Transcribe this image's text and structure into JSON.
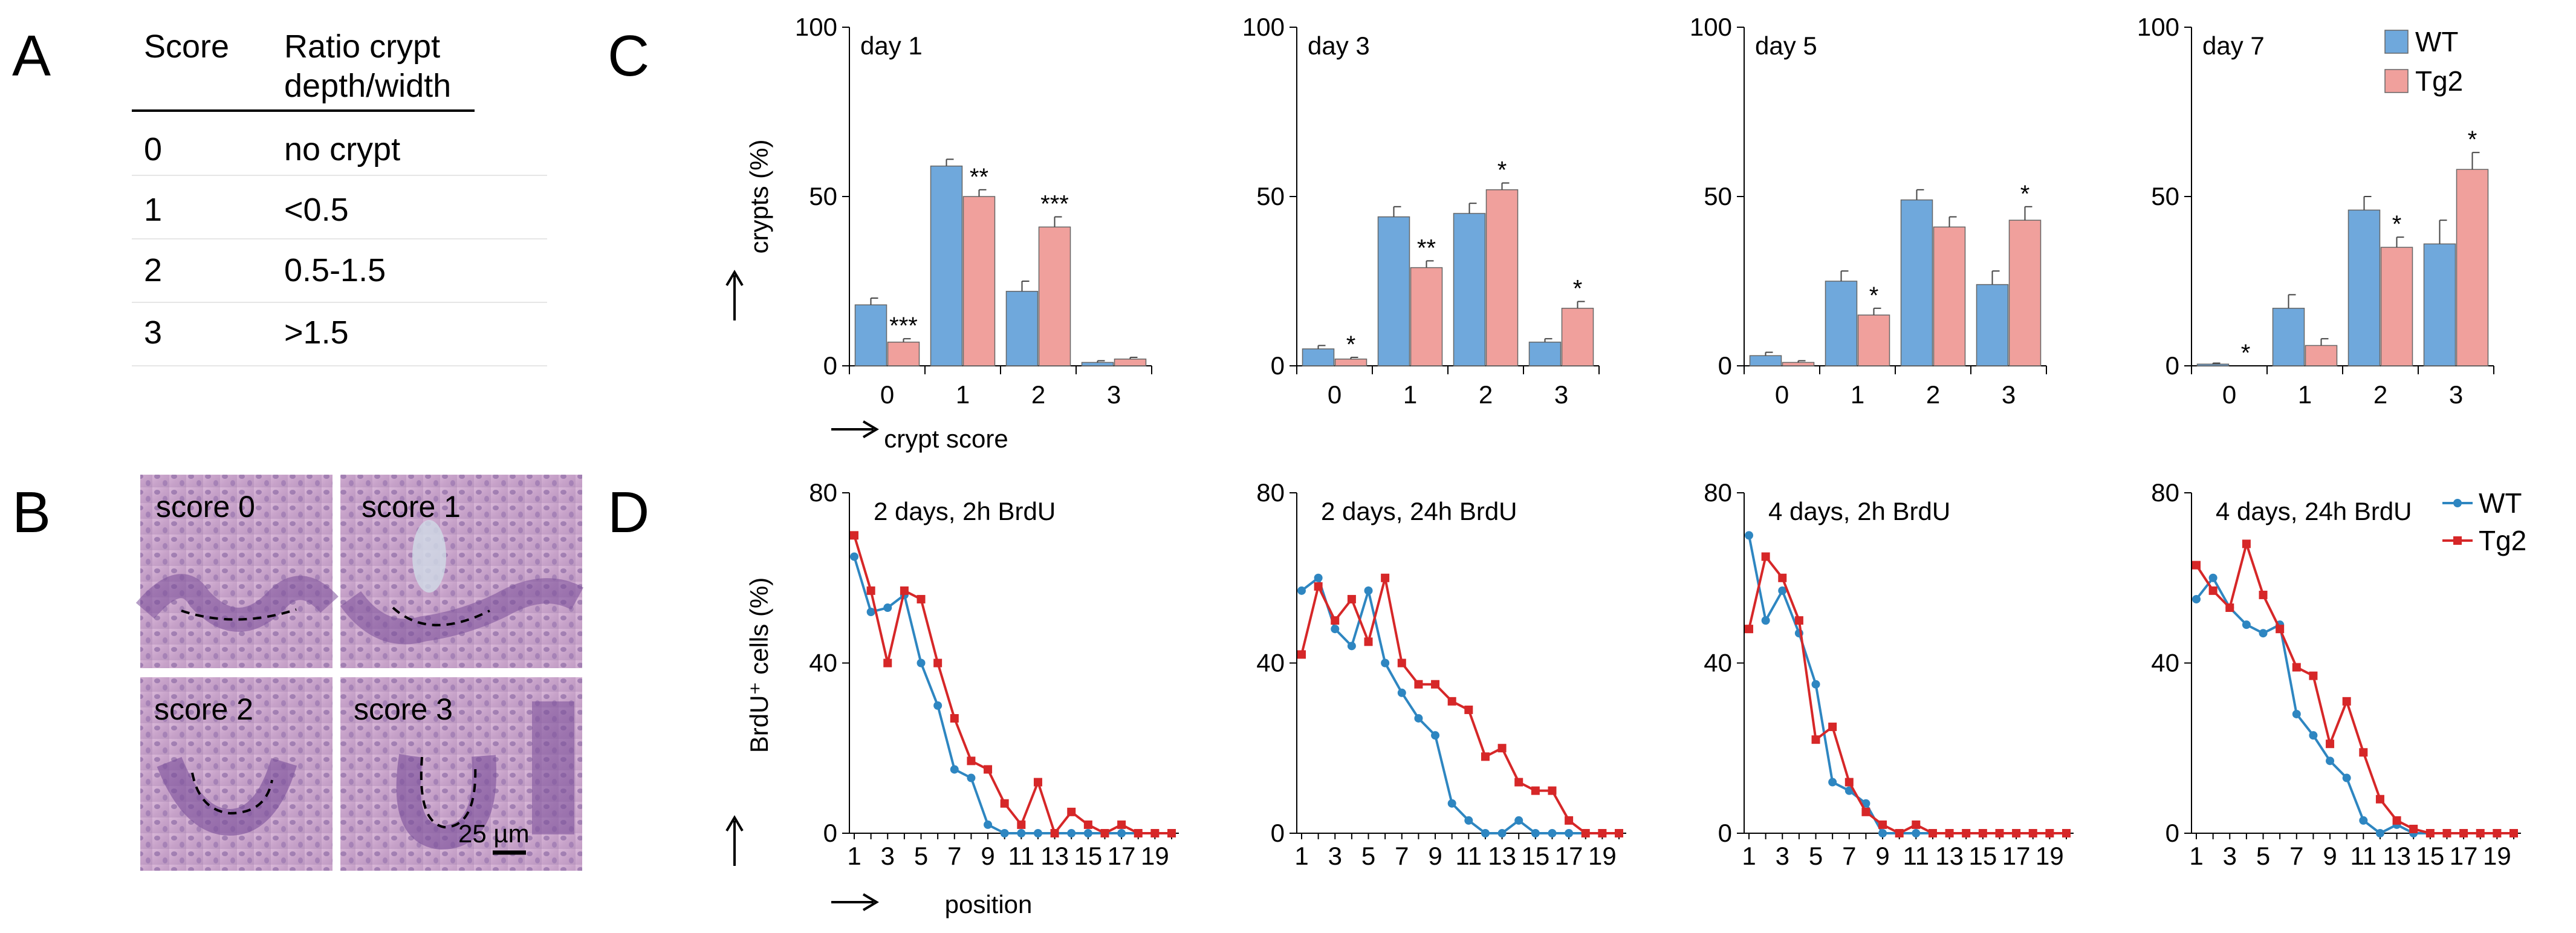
{
  "panels": {
    "A": "A",
    "B": "B",
    "C": "C",
    "D": "D"
  },
  "table_A": {
    "header_score": "Score",
    "header_ratio_line1": "Ratio crypt",
    "header_ratio_line2": "depth/width",
    "rows": [
      {
        "score": "0",
        "ratio": "no crypt"
      },
      {
        "score": "1",
        "ratio": "<0.5"
      },
      {
        "score": "2",
        "ratio": "0.5-1.5"
      },
      {
        "score": "3",
        "ratio": ">1.5"
      }
    ]
  },
  "histology_B": {
    "labels": [
      "score 0",
      "score 1",
      "score 2",
      "score 3"
    ],
    "scale_bar": "25 µm"
  },
  "colors": {
    "wt_bar": "#6fa8dc",
    "tg2_bar": "#f0a09c",
    "wt_line": "#2e86c1",
    "tg2_line": "#d62728",
    "axis": "#000000"
  },
  "chart_data": [
    {
      "type": "bar",
      "panel": "C",
      "title": "day 1",
      "categories": [
        "0",
        "1",
        "2",
        "3"
      ],
      "series": [
        {
          "name": "WT",
          "values": [
            18,
            59,
            22,
            1
          ],
          "errors": [
            2,
            2,
            3,
            0.5
          ]
        },
        {
          "name": "Tg2",
          "values": [
            7,
            50,
            41,
            2
          ],
          "errors": [
            1,
            2,
            3,
            0.5
          ]
        }
      ],
      "annotations": [
        {
          "category": "0",
          "series": "Tg2",
          "text": "***"
        },
        {
          "category": "1",
          "series": "Tg2",
          "text": "**"
        },
        {
          "category": "2",
          "series": "Tg2",
          "text": "***"
        }
      ],
      "ylabel": "crypts (%)",
      "xlabel": "crypt score",
      "ylim": [
        0,
        100
      ],
      "yticks": [
        "0",
        "50",
        "100"
      ]
    },
    {
      "type": "bar",
      "panel": "C",
      "title": "day 3",
      "categories": [
        "0",
        "1",
        "2",
        "3"
      ],
      "series": [
        {
          "name": "WT",
          "values": [
            5,
            44,
            45,
            7
          ],
          "errors": [
            1,
            3,
            3,
            1
          ]
        },
        {
          "name": "Tg2",
          "values": [
            2,
            29,
            52,
            17
          ],
          "errors": [
            0.5,
            2,
            2,
            2
          ]
        }
      ],
      "annotations": [
        {
          "category": "0",
          "series": "Tg2",
          "text": "*"
        },
        {
          "category": "1",
          "series": "Tg2",
          "text": "**"
        },
        {
          "category": "2",
          "series": "Tg2",
          "text": "*"
        },
        {
          "category": "3",
          "series": "Tg2",
          "text": "*"
        }
      ],
      "ylim": [
        0,
        100
      ],
      "yticks": [
        "0",
        "50",
        "100"
      ]
    },
    {
      "type": "bar",
      "panel": "C",
      "title": "day 5",
      "categories": [
        "0",
        "1",
        "2",
        "3"
      ],
      "series": [
        {
          "name": "WT",
          "values": [
            3,
            25,
            49,
            24
          ],
          "errors": [
            1,
            3,
            3,
            4
          ]
        },
        {
          "name": "Tg2",
          "values": [
            1,
            15,
            41,
            43
          ],
          "errors": [
            0.5,
            2,
            3,
            4
          ]
        }
      ],
      "annotations": [
        {
          "category": "1",
          "series": "Tg2",
          "text": "*"
        },
        {
          "category": "3",
          "series": "Tg2",
          "text": "*"
        }
      ],
      "ylim": [
        0,
        100
      ],
      "yticks": [
        "0",
        "50",
        "100"
      ]
    },
    {
      "type": "bar",
      "panel": "C",
      "title": "day 7",
      "categories": [
        "0",
        "1",
        "2",
        "3"
      ],
      "series": [
        {
          "name": "WT",
          "values": [
            0.5,
            17,
            46,
            36
          ],
          "errors": [
            0.3,
            4,
            4,
            7
          ]
        },
        {
          "name": "Tg2",
          "values": [
            0,
            6,
            35,
            58
          ],
          "errors": [
            0,
            2,
            3,
            5
          ]
        }
      ],
      "annotations": [
        {
          "category": "0",
          "series": "Tg2",
          "text": "*"
        },
        {
          "category": "2",
          "series": "Tg2",
          "text": "*"
        },
        {
          "category": "3",
          "series": "Tg2",
          "text": "*"
        }
      ],
      "legend": [
        "WT",
        "Tg2"
      ],
      "legend_position": "top-right",
      "ylim": [
        0,
        100
      ],
      "yticks": [
        "0",
        "50",
        "100"
      ]
    },
    {
      "type": "line",
      "panel": "D",
      "title": "2 days, 2h BrdU",
      "x": [
        1,
        2,
        3,
        4,
        5,
        6,
        7,
        8,
        9,
        10,
        11,
        12,
        13,
        14,
        15,
        16,
        17,
        18,
        19,
        20
      ],
      "series": [
        {
          "name": "WT",
          "values": [
            65,
            52,
            53,
            56,
            40,
            30,
            15,
            13,
            2,
            0,
            0,
            0,
            0,
            0,
            0,
            0,
            0,
            0,
            0,
            0
          ]
        },
        {
          "name": "Tg2",
          "values": [
            70,
            57,
            40,
            57,
            55,
            40,
            27,
            17,
            15,
            7,
            2,
            12,
            0,
            5,
            2,
            0,
            2,
            0,
            0,
            0
          ]
        }
      ],
      "xticks": [
        "1",
        "3",
        "5",
        "7",
        "9",
        "11",
        "13",
        "15",
        "17",
        "19"
      ],
      "ylabel": "BrdU⁺ cells (%)",
      "xlabel": "position",
      "ylim": [
        0,
        80
      ],
      "yticks": [
        "0",
        "40",
        "80"
      ]
    },
    {
      "type": "line",
      "panel": "D",
      "title": "2 days, 24h BrdU",
      "x": [
        1,
        2,
        3,
        4,
        5,
        6,
        7,
        8,
        9,
        10,
        11,
        12,
        13,
        14,
        15,
        16,
        17,
        18,
        19,
        20
      ],
      "series": [
        {
          "name": "WT",
          "values": [
            57,
            60,
            48,
            44,
            57,
            40,
            33,
            27,
            23,
            7,
            3,
            0,
            0,
            3,
            0,
            0,
            0,
            0,
            0,
            0
          ]
        },
        {
          "name": "Tg2",
          "values": [
            42,
            58,
            50,
            55,
            45,
            60,
            40,
            35,
            35,
            31,
            29,
            18,
            20,
            12,
            10,
            10,
            3,
            0,
            0,
            0
          ]
        }
      ],
      "xticks": [
        "1",
        "3",
        "5",
        "7",
        "9",
        "11",
        "13",
        "15",
        "17",
        "19"
      ],
      "ylim": [
        0,
        80
      ],
      "yticks": [
        "0",
        "40",
        "80"
      ]
    },
    {
      "type": "line",
      "panel": "D",
      "title": "4 days, 2h BrdU",
      "x": [
        1,
        2,
        3,
        4,
        5,
        6,
        7,
        8,
        9,
        10,
        11,
        12,
        13,
        14,
        15,
        16,
        17,
        18,
        19,
        20
      ],
      "series": [
        {
          "name": "WT",
          "values": [
            70,
            50,
            57,
            47,
            35,
            12,
            10,
            7,
            0,
            0,
            0,
            0,
            0,
            0,
            0,
            0,
            0,
            0,
            0,
            0
          ]
        },
        {
          "name": "Tg2",
          "values": [
            48,
            65,
            60,
            50,
            22,
            25,
            12,
            5,
            2,
            0,
            2,
            0,
            0,
            0,
            0,
            0,
            0,
            0,
            0,
            0
          ]
        }
      ],
      "xticks": [
        "1",
        "3",
        "5",
        "7",
        "9",
        "11",
        "13",
        "15",
        "17",
        "19"
      ],
      "ylim": [
        0,
        80
      ],
      "yticks": [
        "0",
        "40",
        "80"
      ]
    },
    {
      "type": "line",
      "panel": "D",
      "title": "4 days, 24h BrdU",
      "x": [
        1,
        2,
        3,
        4,
        5,
        6,
        7,
        8,
        9,
        10,
        11,
        12,
        13,
        14,
        15,
        16,
        17,
        18,
        19,
        20
      ],
      "series": [
        {
          "name": "WT",
          "values": [
            55,
            60,
            53,
            49,
            47,
            49,
            28,
            23,
            17,
            13,
            3,
            0,
            2,
            0,
            0,
            0,
            0,
            0,
            0,
            0
          ]
        },
        {
          "name": "Tg2",
          "values": [
            63,
            57,
            53,
            68,
            56,
            48,
            39,
            37,
            21,
            31,
            19,
            8,
            3,
            1,
            0,
            0,
            0,
            0,
            0,
            0
          ]
        }
      ],
      "xticks": [
        "1",
        "3",
        "5",
        "7",
        "9",
        "11",
        "13",
        "15",
        "17",
        "19"
      ],
      "legend": [
        "WT",
        "Tg2"
      ],
      "legend_position": "top-right",
      "ylim": [
        0,
        80
      ],
      "yticks": [
        "0",
        "40",
        "80"
      ]
    }
  ]
}
